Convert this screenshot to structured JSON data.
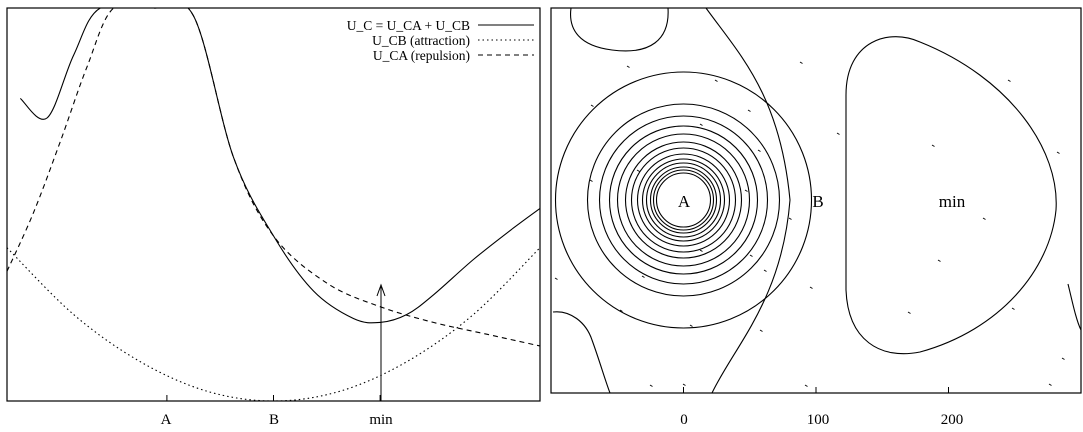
{
  "chart_data": [
    {
      "type": "line",
      "title": "",
      "xlabel": "",
      "ylabel": "",
      "x_ticks": [
        "A",
        "B",
        "min"
      ],
      "x_tick_values": [
        -0.4,
        0.0,
        0.4
      ],
      "xlim": [
        -1.0,
        1.0
      ],
      "ylim": [
        0,
        1
      ],
      "grid": false,
      "legend_position": "top-right",
      "legend": [
        {
          "label": "U_C = U_CA + U_CB",
          "style": "solid"
        },
        {
          "label": "U_CB (attraction)",
          "style": "dotted"
        },
        {
          "label": "U_CA (repulsion)",
          "style": "dashed"
        }
      ],
      "series": [
        {
          "name": "U_C = U_CA + U_CB",
          "style": "solid",
          "x": [
            -0.95,
            -0.85,
            -0.75,
            -0.65,
            -0.45,
            -0.3,
            -0.15,
            0.0,
            0.15,
            0.3,
            0.4,
            0.5,
            0.6,
            0.75,
            0.9,
            1.0
          ],
          "y": [
            0.77,
            0.72,
            0.88,
            1.0,
            1.0,
            0.98,
            0.62,
            0.42,
            0.28,
            0.21,
            0.2,
            0.22,
            0.27,
            0.36,
            0.44,
            0.49
          ]
        },
        {
          "name": "U_CB (attraction)",
          "style": "dotted",
          "x": [
            -1.0,
            -0.75,
            -0.5,
            -0.25,
            0.0,
            0.25,
            0.5,
            0.75,
            1.0
          ],
          "y": [
            0.39,
            0.22,
            0.1,
            0.025,
            0.0,
            0.025,
            0.1,
            0.22,
            0.39
          ]
        },
        {
          "name": "U_CA (repulsion)",
          "style": "dashed",
          "x": [
            -1.0,
            -0.9,
            -0.8,
            -0.7,
            -0.6,
            -0.45,
            -0.3,
            -0.15,
            0.0,
            0.2,
            0.4,
            0.6,
            0.8,
            1.0
          ],
          "y": [
            0.33,
            0.48,
            0.66,
            0.85,
            1.0,
            1.0,
            0.98,
            0.62,
            0.42,
            0.3,
            0.24,
            0.2,
            0.17,
            0.14
          ]
        }
      ],
      "annotations": [
        {
          "text": "",
          "kind": "arrow",
          "x": 0.4,
          "y_from": 0.0,
          "y_to": 0.2
        }
      ]
    },
    {
      "type": "contour",
      "title": "",
      "xlabel": "",
      "ylabel": "",
      "x_ticks": [
        "0",
        "100",
        "200"
      ],
      "x_tick_values": [
        0,
        100,
        200
      ],
      "xlim": [
        -100,
        300
      ],
      "grid": false,
      "annotations": [
        {
          "text": "A",
          "x": 0,
          "y": 0
        },
        {
          "text": "B",
          "x": 100,
          "y": 0
        },
        {
          "text": "min",
          "x": 200,
          "y": 0
        }
      ]
    }
  ]
}
